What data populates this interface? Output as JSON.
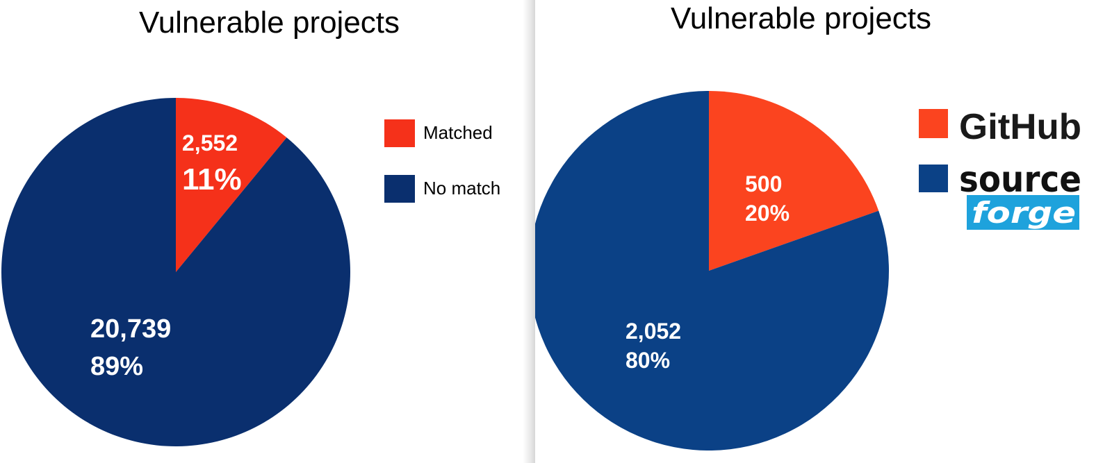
{
  "chart_data": [
    {
      "type": "pie",
      "title": "Vulnerable projects",
      "legend_position": "right",
      "slices": [
        {
          "name": "Matched",
          "value": 2552,
          "value_label": "2,552",
          "percent_label": "11%",
          "color": "#f5311a"
        },
        {
          "name": "No match",
          "value": 20739,
          "value_label": "20,739",
          "percent_label": "89%",
          "color": "#0a2f6e"
        }
      ]
    },
    {
      "type": "pie",
      "title": "Vulnerable projects",
      "legend_position": "right",
      "slices": [
        {
          "name": "GitHub",
          "value": 500,
          "value_label": "500",
          "percent_label": "20%",
          "color": "#fb441f"
        },
        {
          "name": "sourceforge",
          "value": 2052,
          "value_label": "2,052",
          "percent_label": "80%",
          "color": "#0b4186"
        }
      ]
    }
  ],
  "logos": {
    "github_text": "GitHub",
    "sourceforge_top": "source",
    "sourceforge_bottom": "forge",
    "sourceforge_accent": "#1ea2dc"
  }
}
